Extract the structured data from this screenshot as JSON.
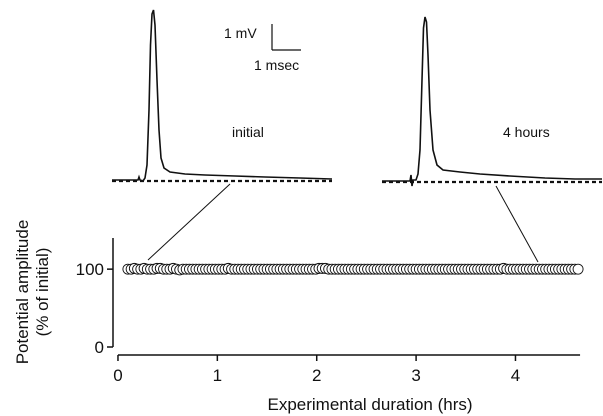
{
  "chart_data": {
    "type": "scatter",
    "xlabel": "Experimental duration (hrs)",
    "ylabel_line1": "Potential amplitude",
    "ylabel_line2": "(% of initial)",
    "xlim": [
      -0.05,
      4.75
    ],
    "ylim": [
      0,
      140
    ],
    "xticks": [
      0,
      1,
      2,
      3,
      4
    ],
    "xtick_labels": [
      "0",
      "1",
      "2",
      "3",
      "4"
    ],
    "yticks": [
      0,
      100
    ],
    "ytick_labels": [
      "0",
      "100"
    ],
    "series": [
      {
        "marker": "open-circle",
        "x_start": 0.1,
        "x_end": 4.63,
        "n_points": 140,
        "values": [
          100,
          100,
          101,
          100,
          100,
          101,
          100,
          100,
          100,
          101,
          101,
          100,
          100,
          100,
          101,
          100,
          99,
          100,
          100,
          100,
          100,
          100,
          100,
          100,
          100,
          100,
          100,
          100,
          100,
          100,
          100,
          101,
          100,
          100,
          100,
          100,
          100,
          100,
          100,
          100,
          100,
          100,
          100,
          100,
          100,
          100,
          100,
          100,
          100,
          100,
          100,
          100,
          100,
          100,
          100,
          100,
          100,
          100,
          100,
          101,
          101,
          101,
          100,
          100,
          100,
          100,
          100,
          100,
          100,
          100,
          100,
          100,
          100,
          100,
          100,
          100,
          100,
          100,
          100,
          100,
          100,
          100,
          100,
          100,
          100,
          100,
          100,
          100,
          100,
          100,
          100,
          100,
          100,
          100,
          100,
          100,
          100,
          100,
          100,
          100,
          100,
          100,
          100,
          100,
          100,
          100,
          100,
          100,
          100,
          100,
          100,
          100,
          100,
          100,
          100,
          100,
          101,
          100,
          100,
          100,
          100,
          100,
          100,
          100,
          100,
          100,
          100,
          100,
          100,
          100,
          100,
          100,
          100,
          100,
          100,
          100,
          100,
          100,
          100,
          100
        ]
      }
    ],
    "traces": [
      {
        "label": "initial",
        "time_hours": 0.2
      },
      {
        "label": "4 hours",
        "time_hours": 4.1
      }
    ],
    "scale_bar": {
      "vertical_label": "1 mV",
      "horizontal_label": "1 msec"
    }
  }
}
